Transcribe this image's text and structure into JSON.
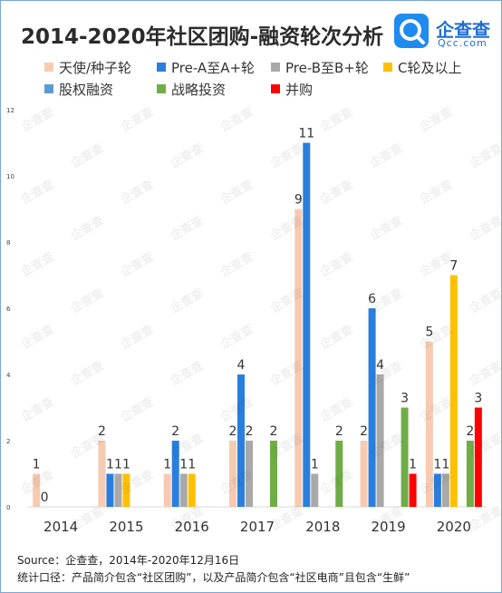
{
  "title": "2014-2020年社区团购-融资轮次分析",
  "logo": {
    "name": "企查查",
    "sub": "Qcc.com",
    "watermark": "企查查"
  },
  "chart_data": {
    "type": "bar",
    "categories": [
      "2014",
      "2015",
      "2016",
      "2017",
      "2018",
      "2019",
      "2020"
    ],
    "ylim": [
      0,
      12
    ],
    "yticks": [
      0,
      2,
      4,
      6,
      8,
      10,
      12
    ],
    "grid": false,
    "legend_position": "top",
    "series": [
      {
        "name": "天使/种子轮",
        "color": "#f7cbb1",
        "values": [
          1,
          2,
          1,
          2,
          9,
          2,
          5
        ]
      },
      {
        "name": "Pre-A至A+轮",
        "color": "#2a7fde",
        "values": [
          0,
          1,
          2,
          4,
          11,
          6,
          1
        ]
      },
      {
        "name": "Pre-B至B+轮",
        "color": "#a9a9a9",
        "values": [
          null,
          1,
          1,
          2,
          1,
          4,
          1
        ]
      },
      {
        "name": "C轮及以上",
        "color": "#ffc000",
        "values": [
          null,
          1,
          1,
          null,
          null,
          null,
          7
        ]
      },
      {
        "name": "股权融资",
        "color": "#5b9bd5",
        "values": [
          null,
          null,
          null,
          null,
          null,
          null,
          null
        ]
      },
      {
        "name": "战略投资",
        "color": "#70ad47",
        "values": [
          null,
          null,
          null,
          2,
          2,
          3,
          2
        ]
      },
      {
        "name": "并购",
        "color": "#ff0000",
        "values": [
          null,
          null,
          null,
          null,
          null,
          1,
          3
        ]
      }
    ]
  },
  "footer": {
    "source": "Source：企查查，2014年-2020年12月16日",
    "note": "统计口径：产品简介包含“社区团购”，以及产品简介包含“社区电商”且包含“生鲜”"
  }
}
